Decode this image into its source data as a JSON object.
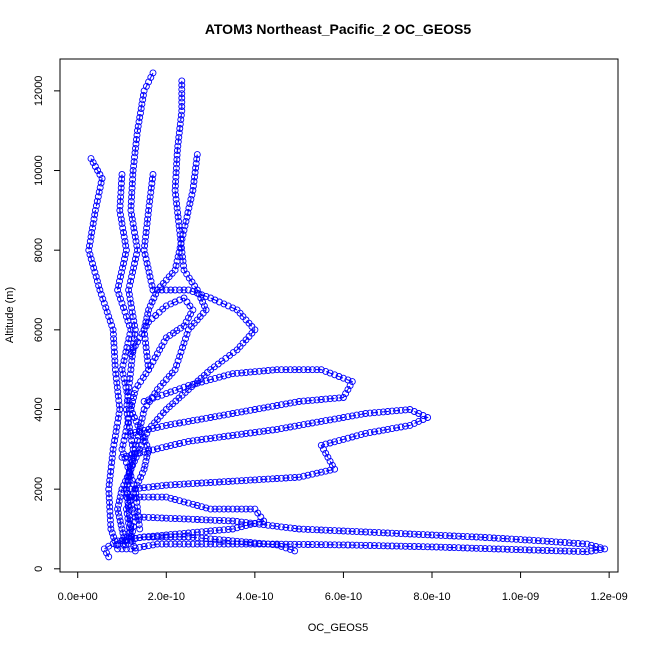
{
  "chart_data": {
    "type": "scatter",
    "title": "ATOM3 Northeast_Pacific_2 OC_GEOS5",
    "xlabel": "OC_GEOS5",
    "ylabel": "Altitude (m)",
    "xlim": [
      -4e-11,
      1.22e-09
    ],
    "ylim": [
      -80,
      12800
    ],
    "x_ticks": [
      0,
      2e-10,
      4e-10,
      6e-10,
      8e-10,
      1e-09,
      1.2e-09
    ],
    "x_tick_labels": [
      "0.0e+00",
      "2.0e-10",
      "4.0e-10",
      "6.0e-10",
      "8.0e-10",
      "1.0e-09",
      "1.2e-09"
    ],
    "y_ticks": [
      0,
      2000,
      4000,
      6000,
      8000,
      10000,
      12000
    ],
    "y_tick_labels": [
      "0",
      "2000",
      "4000",
      "6000",
      "8000",
      "10000",
      "12000"
    ],
    "marker": "open-circle",
    "line_style": "dashed",
    "color": "#0000ff",
    "grid": false,
    "series": [
      {
        "points": [
          [
            3e-11,
            10300
          ],
          [
            5.5e-11,
            9800
          ],
          [
            4e-11,
            9000
          ],
          [
            2.5e-11,
            8000
          ],
          [
            5e-11,
            7000
          ],
          [
            8e-11,
            6000
          ],
          [
            8.5e-11,
            5000
          ],
          [
            9.5e-11,
            4000
          ],
          [
            8e-11,
            3000
          ],
          [
            7e-11,
            2000
          ],
          [
            7.5e-11,
            1000
          ],
          [
            9e-11,
            500
          ]
        ]
      },
      {
        "points": [
          [
            1e-10,
            9900
          ],
          [
            9.5e-11,
            9000
          ],
          [
            1.1e-10,
            8000
          ],
          [
            9e-11,
            7000
          ],
          [
            1.2e-10,
            6000
          ],
          [
            1e-10,
            5000
          ],
          [
            1.2e-10,
            4000
          ],
          [
            1e-10,
            3000
          ],
          [
            1.3e-10,
            2000
          ],
          [
            1.1e-10,
            1500
          ],
          [
            1.2e-10,
            800
          ],
          [
            1.3e-10,
            450
          ]
        ]
      },
      {
        "points": [
          [
            1.7e-10,
            12450
          ],
          [
            1.5e-10,
            12000
          ],
          [
            1.35e-10,
            11000
          ],
          [
            1.25e-10,
            10000
          ],
          [
            1.2e-10,
            9000
          ],
          [
            1.35e-10,
            8000
          ],
          [
            1.15e-10,
            7000
          ],
          [
            1.3e-10,
            6000
          ],
          [
            1.2e-10,
            5000
          ],
          [
            1.1e-10,
            4000
          ],
          [
            1.25e-10,
            3000
          ],
          [
            1.1e-10,
            2000
          ],
          [
            1.2e-10,
            1000
          ],
          [
            1e-10,
            500
          ]
        ]
      },
      {
        "points": [
          [
            2.35e-10,
            12250
          ],
          [
            2.35e-10,
            11500
          ],
          [
            2.25e-10,
            10500
          ],
          [
            2.2e-10,
            9500
          ],
          [
            2.3e-10,
            8500
          ],
          [
            2.4e-10,
            7500
          ],
          [
            2.7e-10,
            7000
          ],
          [
            2.9e-10,
            6500
          ],
          [
            2.5e-10,
            6000
          ],
          [
            2.2e-10,
            5000
          ],
          [
            1.8e-10,
            4500
          ],
          [
            1.5e-10,
            4000
          ],
          [
            1.3e-10,
            3000
          ],
          [
            1.2e-10,
            2500
          ],
          [
            1.1e-10,
            2000
          ],
          [
            1.3e-10,
            1300
          ],
          [
            1.2e-10,
            700
          ]
        ]
      },
      {
        "points": [
          [
            2.7e-10,
            10400
          ],
          [
            2.6e-10,
            9500
          ],
          [
            2.4e-10,
            8500
          ],
          [
            2.2e-10,
            7500
          ],
          [
            1.8e-10,
            7000
          ],
          [
            1.6e-10,
            6500
          ],
          [
            1.5e-10,
            6000
          ],
          [
            1.6e-10,
            5000
          ],
          [
            1.3e-10,
            4500
          ],
          [
            1.2e-10,
            4000
          ],
          [
            1.4e-10,
            3500
          ],
          [
            1.6e-10,
            3000
          ],
          [
            1.5e-10,
            2500
          ],
          [
            1.3e-10,
            2000
          ],
          [
            1.4e-10,
            1000
          ]
        ]
      },
      {
        "points": [
          [
            1.7e-10,
            9900
          ],
          [
            1.6e-10,
            9000
          ],
          [
            1.5e-10,
            8000
          ],
          [
            1.7e-10,
            7000
          ],
          [
            2.5e-10,
            7000
          ],
          [
            3e-10,
            6800
          ],
          [
            3.6e-10,
            6500
          ],
          [
            4e-10,
            6000
          ],
          [
            3.6e-10,
            5500
          ],
          [
            3e-10,
            5000
          ],
          [
            2.5e-10,
            4500
          ],
          [
            2e-10,
            4000
          ],
          [
            1.6e-10,
            3500
          ],
          [
            1.4e-10,
            3000
          ],
          [
            1.2e-10,
            2500
          ],
          [
            1e-10,
            2000
          ],
          [
            9e-11,
            1500
          ],
          [
            1e-10,
            1000
          ],
          [
            1.1e-10,
            500
          ]
        ]
      },
      {
        "points": [
          [
            1.5e-10,
            4200
          ],
          [
            2.5e-10,
            4600
          ],
          [
            3.5e-10,
            4900
          ],
          [
            4.5e-10,
            5000
          ],
          [
            5.5e-10,
            5000
          ],
          [
            6.2e-10,
            4700
          ],
          [
            6e-10,
            4300
          ],
          [
            5e-10,
            4200
          ],
          [
            4e-10,
            4000
          ],
          [
            3e-10,
            3800
          ],
          [
            2e-10,
            3600
          ],
          [
            1.2e-10,
            3400
          ]
        ]
      },
      {
        "points": [
          [
            1e-10,
            2800
          ],
          [
            2.5e-10,
            3200
          ],
          [
            4.5e-10,
            3500
          ],
          [
            6.5e-10,
            3900
          ],
          [
            7.5e-10,
            4000
          ],
          [
            7.9e-10,
            3800
          ],
          [
            7.5e-10,
            3600
          ],
          [
            6.5e-10,
            3400
          ],
          [
            5.5e-10,
            3100
          ],
          [
            5.8e-10,
            2500
          ],
          [
            5e-10,
            2300
          ],
          [
            3.5e-10,
            2200
          ],
          [
            2e-10,
            2100
          ],
          [
            1.2e-10,
            2000
          ]
        ]
      },
      {
        "points": [
          [
            1.1e-10,
            1800
          ],
          [
            2e-10,
            1800
          ],
          [
            3e-10,
            1500
          ],
          [
            4e-10,
            1500
          ],
          [
            4.2e-10,
            1200
          ],
          [
            3.5e-10,
            1000
          ],
          [
            2.5e-10,
            900
          ],
          [
            1.5e-10,
            800
          ],
          [
            1e-10,
            700
          ],
          [
            9e-11,
            600
          ]
        ]
      },
      {
        "points": [
          [
            1.4e-10,
            1300
          ],
          [
            3.5e-10,
            1200
          ],
          [
            5e-10,
            1000
          ],
          [
            7e-10,
            900
          ],
          [
            9e-10,
            800
          ],
          [
            1.05e-09,
            700
          ],
          [
            1.15e-09,
            620
          ],
          [
            1.19e-09,
            500
          ],
          [
            1.15e-09,
            430
          ],
          [
            1e-09,
            480
          ],
          [
            8e-10,
            550
          ],
          [
            6e-10,
            600
          ],
          [
            4.5e-10,
            620
          ],
          [
            3e-10,
            620
          ],
          [
            1.8e-10,
            620
          ],
          [
            1.2e-10,
            500
          ]
        ]
      },
      {
        "points": [
          [
            4.9e-10,
            450
          ],
          [
            4.5e-10,
            600
          ],
          [
            3.5e-10,
            700
          ],
          [
            2.5e-10,
            800
          ],
          [
            1.5e-10,
            800
          ],
          [
            9e-11,
            700
          ],
          [
            6e-11,
            500
          ],
          [
            7e-11,
            300
          ]
        ]
      },
      {
        "points": [
          [
            1.6e-10,
            5000
          ],
          [
            1.8e-10,
            5400
          ],
          [
            2e-10,
            5800
          ],
          [
            2.4e-10,
            6100
          ],
          [
            2.6e-10,
            6500
          ],
          [
            2.4e-10,
            6800
          ],
          [
            2e-10,
            6600
          ],
          [
            1.6e-10,
            6200
          ],
          [
            1.4e-10,
            5800
          ],
          [
            1.2e-10,
            5400
          ]
        ]
      }
    ]
  }
}
